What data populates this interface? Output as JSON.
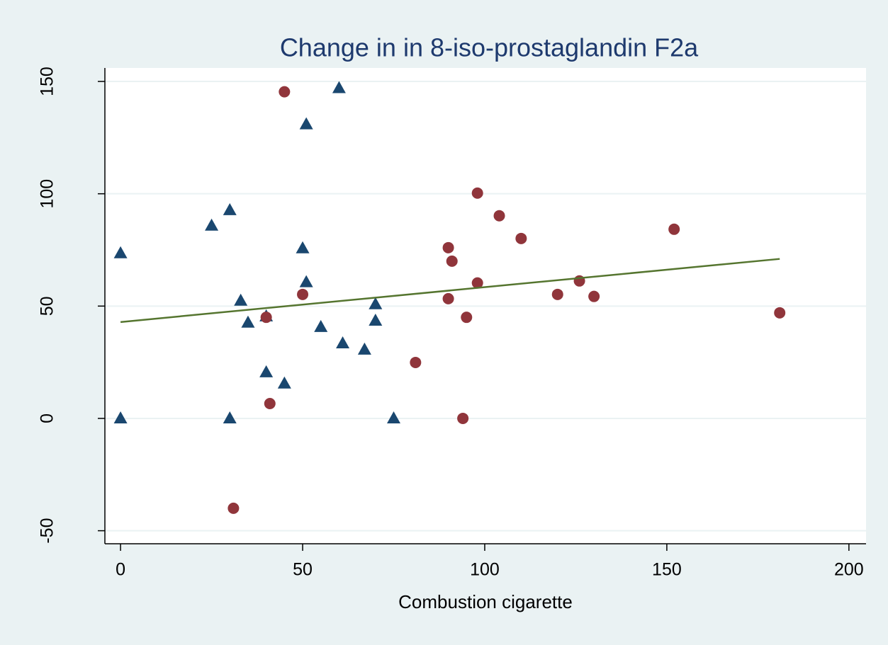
{
  "chart_data": {
    "type": "scatter",
    "title": "Change in in 8-iso-prostaglandin F2a",
    "x_label": "Combustion cigarette",
    "series": [
      {
        "color": "#1a476f",
        "marker": "triangle",
        "x": [
          0,
          0,
          25,
          30,
          30,
          33,
          35,
          40,
          40,
          45,
          50,
          51,
          51,
          55,
          60,
          61,
          67,
          70,
          70,
          75
        ],
        "values": [
          73.5,
          0,
          85.8,
          92.7,
          0,
          52.4,
          42.6,
          45.4,
          20.5,
          15.5,
          75.7,
          60.6,
          130.9,
          40.7,
          147,
          33.4,
          30.6,
          50.8,
          43.5,
          0
        ]
      },
      {
        "color": "#90353b",
        "marker": "circle",
        "x": [
          31,
          40,
          41,
          45,
          50,
          81,
          90,
          90,
          91,
          94,
          95,
          98,
          98,
          104,
          110,
          120,
          126,
          130,
          152,
          181
        ],
        "values": [
          -40,
          45,
          6.6,
          145.4,
          55.2,
          24.9,
          76,
          53.3,
          70,
          0,
          45,
          100.3,
          60.3,
          90.2,
          80.1,
          55.2,
          61.2,
          54.3,
          84.2,
          47
        ]
      }
    ],
    "fit": {
      "color": "#55752f",
      "x": [
        0,
        181
      ],
      "values": [
        42.9,
        71
      ]
    },
    "xlim": [
      -4.3,
      204.7
    ],
    "ylim": [
      -55.8,
      156
    ],
    "xticks": [
      0,
      50,
      100,
      150,
      200
    ],
    "yticks": [
      -50,
      0,
      50,
      100,
      150
    ],
    "grid": true
  }
}
